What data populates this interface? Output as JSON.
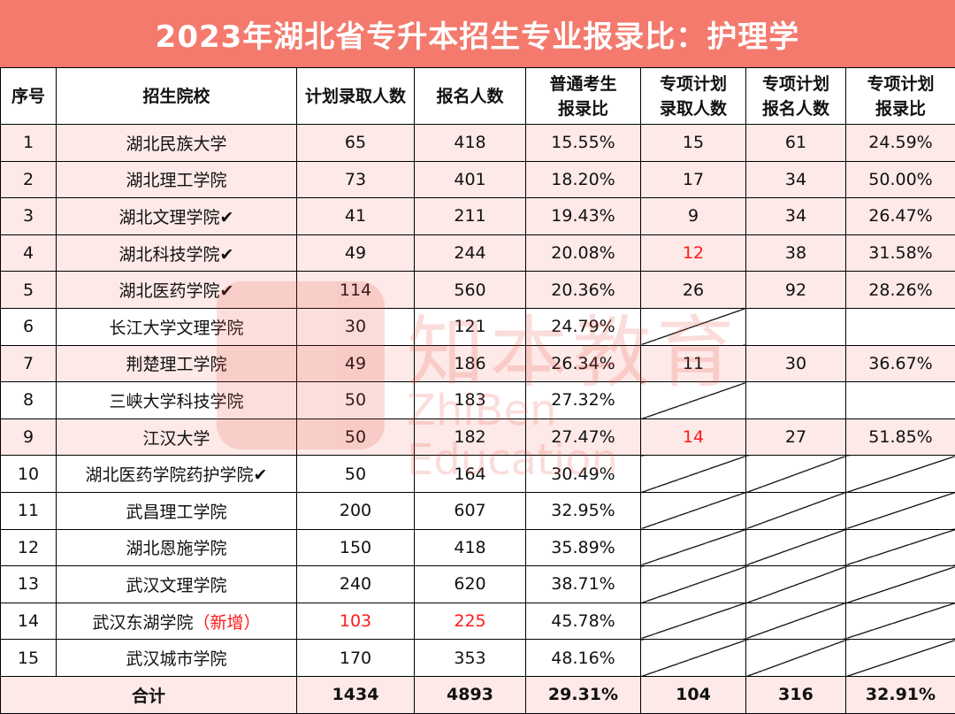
{
  "title": "2023年湖北省专升本招生专业报录比：护理学",
  "headers": [
    "序号",
    "招生院校",
    "计划录取人数",
    "报名人数",
    "普通考生报录比",
    "专项计划录取人数",
    "专项计划报名人数",
    "专项计划报录比"
  ],
  "header_lines": {
    "c4": [
      "普通考生",
      "报录比"
    ],
    "c5": [
      "专项计划",
      "录取人数"
    ],
    "c6": [
      "专项计划",
      "报名人数"
    ],
    "c7": [
      "专项计划",
      "报录比"
    ]
  },
  "rows": [
    {
      "no": "1",
      "school": "湖北民族大学",
      "plan": "65",
      "applicants": "418",
      "ratio": "15.55%",
      "sp_admit": "15",
      "sp_apply": "61",
      "sp_ratio": "24.59%"
    },
    {
      "no": "2",
      "school": "湖北理工学院",
      "plan": "73",
      "applicants": "401",
      "ratio": "18.20%",
      "sp_admit": "17",
      "sp_apply": "34",
      "sp_ratio": "50.00%"
    },
    {
      "no": "3",
      "school": "湖北文理学院✔",
      "plan": "41",
      "applicants": "211",
      "ratio": "19.43%",
      "sp_admit": "9",
      "sp_apply": "34",
      "sp_ratio": "26.47%"
    },
    {
      "no": "4",
      "school": "湖北科技学院✔",
      "plan": "49",
      "applicants": "244",
      "ratio": "20.08%",
      "sp_admit": "12",
      "sp_apply": "38",
      "sp_ratio": "31.58%"
    },
    {
      "no": "5",
      "school": "湖北医药学院✔",
      "plan": "114",
      "applicants": "560",
      "ratio": "20.36%",
      "sp_admit": "26",
      "sp_apply": "92",
      "sp_ratio": "28.26%"
    },
    {
      "no": "6",
      "school": "长江大学文理学院",
      "plan": "30",
      "applicants": "121",
      "ratio": "24.79%",
      "sp_admit": "",
      "sp_apply": "",
      "sp_ratio": ""
    },
    {
      "no": "7",
      "school": "荆楚理工学院",
      "plan": "49",
      "applicants": "186",
      "ratio": "26.34%",
      "sp_admit": "11",
      "sp_apply": "30",
      "sp_ratio": "36.67%"
    },
    {
      "no": "8",
      "school": "三峡大学科技学院",
      "plan": "50",
      "applicants": "183",
      "ratio": "27.32%",
      "sp_admit": "",
      "sp_apply": "",
      "sp_ratio": ""
    },
    {
      "no": "9",
      "school": "江汉大学",
      "plan": "50",
      "applicants": "182",
      "ratio": "27.47%",
      "sp_admit": "14",
      "sp_apply": "27",
      "sp_ratio": "51.85%"
    },
    {
      "no": "10",
      "school": "湖北医药学院药护学院✔",
      "plan": "50",
      "applicants": "164",
      "ratio": "30.49%",
      "sp_admit": "",
      "sp_apply": "",
      "sp_ratio": ""
    },
    {
      "no": "11",
      "school": "武昌理工学院",
      "plan": "200",
      "applicants": "607",
      "ratio": "32.95%",
      "sp_admit": "",
      "sp_apply": "",
      "sp_ratio": ""
    },
    {
      "no": "12",
      "school": "湖北恩施学院",
      "plan": "150",
      "applicants": "418",
      "ratio": "35.89%",
      "sp_admit": "",
      "sp_apply": "",
      "sp_ratio": ""
    },
    {
      "no": "13",
      "school": "武汉文理学院",
      "plan": "240",
      "applicants": "620",
      "ratio": "38.71%",
      "sp_admit": "",
      "sp_apply": "",
      "sp_ratio": ""
    },
    {
      "no": "14",
      "school": "武汉东湖学院",
      "school_note": "（新增）",
      "plan": "103",
      "applicants": "225",
      "ratio": "45.78%",
      "sp_admit": "",
      "sp_apply": "",
      "sp_ratio": ""
    },
    {
      "no": "15",
      "school": "武汉城市学院",
      "plan": "170",
      "applicants": "353",
      "ratio": "48.16%",
      "sp_admit": "",
      "sp_apply": "",
      "sp_ratio": ""
    }
  ],
  "total": {
    "label": "合计",
    "plan": "1434",
    "applicants": "4893",
    "ratio": "29.31%",
    "sp_admit": "104",
    "sp_apply": "316",
    "sp_ratio": "32.91%"
  },
  "watermark": {
    "cn": "知本教育",
    "en": "ZhiBen Education"
  },
  "colors": {
    "title_bg": "#f47a6e",
    "row_pink": "#fde9e7",
    "highlight_red": "#ff1a1a"
  }
}
